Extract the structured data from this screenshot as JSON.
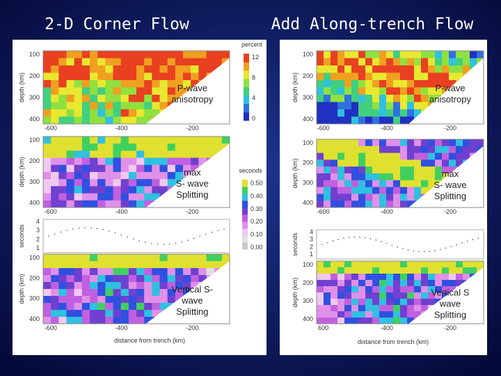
{
  "titles": {
    "left": "2-D Corner Flow",
    "right": "Add Along-trench Flow"
  },
  "left": {
    "colorbar1": {
      "title": "percent",
      "labels": [
        "12",
        "8",
        "4",
        "0"
      ]
    },
    "colorbar2": {
      "title": "seconds",
      "labels": [
        "0.50",
        "0.40",
        "0.30",
        "0.20",
        "0.10",
        "0.00"
      ]
    },
    "panels": [
      {
        "ylabel": "depth (km)",
        "yticks": [
          "100",
          "200",
          "300",
          "400"
        ],
        "xticks": [
          "-600",
          "-400",
          "-200"
        ],
        "annotation": [
          "P-wave",
          "anisotropy"
        ]
      },
      {
        "ylabel": "depth (km)",
        "yticks": [
          "100",
          "200",
          "300",
          "400"
        ],
        "xticks": [
          "-600",
          "-400",
          "-200"
        ],
        "annotation": [
          "max",
          "S- wave",
          "Splitting"
        ]
      },
      {
        "ylabel": "depth (km)",
        "yticks": [
          "100",
          "200",
          "300",
          "400"
        ],
        "xticks": [
          "-600",
          "-400",
          "-200"
        ],
        "annotation": [
          "Vertical S-",
          "wave",
          "Splitting"
        ]
      }
    ],
    "seconds_plot": {
      "ylabel": "seconds",
      "yticks": [
        "4",
        "3",
        "2",
        "1"
      ]
    },
    "xlabel": "distance from trench (km)"
  },
  "right": {
    "panels": [
      {
        "ylabel": "depth (km)",
        "yticks": [
          "100",
          "200",
          "300",
          "400"
        ],
        "xticks": [
          "-600",
          "-400",
          "-200"
        ],
        "annotation": [
          "P-wave",
          "anisotropy"
        ]
      },
      {
        "ylabel": "depth (km)",
        "yticks": [
          "100",
          "200",
          "300",
          "400"
        ],
        "xticks": [
          "-600",
          "-400",
          "-200"
        ],
        "annotation": [
          "max",
          "S- wave",
          "Splitting"
        ]
      },
      {
        "ylabel": "depth (km)",
        "yticks": [
          "100",
          "200",
          "300",
          "400"
        ],
        "xticks": [
          "600",
          "-400",
          "-200"
        ],
        "annotation": [
          "Vertical S",
          "wave",
          "Splitting"
        ]
      }
    ],
    "seconds_plot": {
      "ylabel": "seconds",
      "yticks": [
        "4",
        "3",
        "2",
        "1"
      ]
    },
    "xlabel": "distance from trench (km)"
  }
}
